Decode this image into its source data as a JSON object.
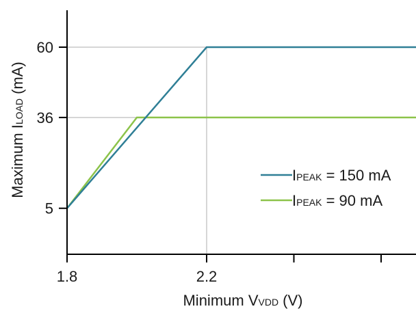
{
  "chart_data": {
    "type": "line",
    "title": "",
    "xlabel": {
      "main": "Minimum V",
      "sub": "VDD",
      "suffix": " (V)"
    },
    "ylabel": {
      "main": "Maximum I",
      "sub": "LOAD",
      "suffix": " (mA)"
    },
    "xlim": [
      1.8,
      2.8
    ],
    "ylim": [
      -10.7,
      72.6
    ],
    "x_ticks": [
      {
        "value": 1.8,
        "label": "1.8"
      },
      {
        "value": 2.2,
        "label": "2.2"
      },
      {
        "value": 2.45,
        "label": ""
      },
      {
        "value": 2.7,
        "label": ""
      }
    ],
    "y_ticks": [
      {
        "value": 60,
        "label": "60"
      },
      {
        "value": 36,
        "label": "36"
      },
      {
        "value": 5,
        "label": "5"
      }
    ],
    "grid": {
      "horizontal": [
        60,
        36
      ],
      "vertical": [
        2.2
      ],
      "color": "#c8c8c8"
    },
    "legend_placement": "center-right",
    "series": [
      {
        "name": "IPEAK = 150 mA",
        "name_parts": {
          "main": "I",
          "sub": "PEAK",
          "suffix": " = 150 mA"
        },
        "color": "#2f7f96",
        "x": [
          1.8,
          2.2,
          2.8
        ],
        "y": [
          5,
          60,
          60
        ]
      },
      {
        "name": "IPEAK = 90 mA",
        "name_parts": {
          "main": "I",
          "sub": "PEAK",
          "suffix": " = 90 mA"
        },
        "color": "#8cc34a",
        "x": [
          1.8,
          2.0,
          2.8
        ],
        "y": [
          5,
          36,
          36
        ]
      }
    ]
  }
}
